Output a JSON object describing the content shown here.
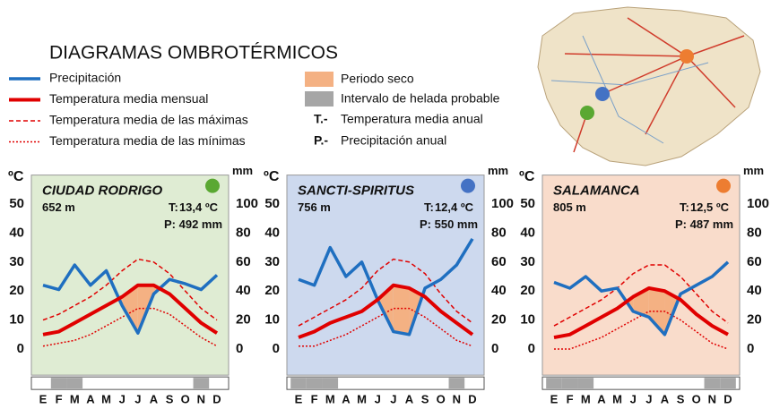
{
  "title": "DIAGRAMAS OMBROTÉRMICOS",
  "legend": {
    "dry": "Periodo seco",
    "frost": "Intervalo de helada probable",
    "annual_temp": {
      "key": "T.-",
      "text": "Temperatura media anual"
    },
    "annual_precip": {
      "key": "P.-",
      "text": "Precipitación anual"
    }
  },
  "chart_data": [
    {
      "type": "line",
      "title": "CIUDAD RODRIGO",
      "altitude": "652 m",
      "annual_temp_key": "T:",
      "annual_temp": "13,4 ºC",
      "annual_precip": "P: 492 mm",
      "background": "#dfecd3",
      "marker_color": "#5aa832",
      "dry_color": "#f4b183",
      "frost_color": "#a6a6a6",
      "ylabel": "ºC",
      "y2label": "mm",
      "ylim": [
        -9,
        60
      ],
      "yticks": [
        0,
        10,
        20,
        30,
        40,
        50
      ],
      "y2lim": [
        -18,
        120
      ],
      "y2ticks": [
        0,
        20,
        40,
        60,
        80,
        100
      ],
      "categories": [
        "E",
        "F",
        "M",
        "A",
        "M",
        "J",
        "J",
        "A",
        "S",
        "O",
        "N",
        "D"
      ],
      "frost": [
        1,
        2,
        10
      ],
      "series": [
        {
          "name": "Precipitación",
          "color": "#1f6fc0",
          "style": "solid",
          "axis": "y2",
          "values": [
            44,
            41,
            58,
            44,
            54,
            30,
            11,
            38,
            48,
            45,
            41,
            51
          ]
        },
        {
          "name": "Temperatura media mensual",
          "color": "#e00000",
          "style": "solid",
          "values": [
            5,
            6,
            9,
            12,
            15,
            18,
            22,
            22,
            19,
            14,
            9,
            5.5
          ]
        },
        {
          "name": "Temperatura media de las máximas",
          "color": "#e00000",
          "style": "dashed",
          "values": [
            10,
            12,
            15,
            18,
            22,
            27,
            31,
            30,
            26,
            20,
            14,
            10
          ]
        },
        {
          "name": "Temperatura media de las mínimas",
          "color": "#e00000",
          "style": "dotted",
          "values": [
            1,
            2,
            3,
            5,
            8,
            11,
            14,
            14,
            12,
            8,
            4,
            1
          ]
        }
      ]
    },
    {
      "type": "line",
      "title": "SANCTI-SPIRITUS",
      "altitude": "756 m",
      "annual_temp_key": "T:",
      "annual_temp": "12,4 ºC",
      "annual_precip": "P: 550 mm",
      "background": "#cdd9ee",
      "marker_color": "#4472c4",
      "dry_color": "#f4b183",
      "frost_color": "#a6a6a6",
      "ylabel": "ºC",
      "y2label": "mm",
      "ylim": [
        -9,
        60
      ],
      "yticks": [
        0,
        10,
        20,
        30,
        40,
        50
      ],
      "y2lim": [
        -18,
        120
      ],
      "y2ticks": [
        0,
        20,
        40,
        60,
        80,
        100
      ],
      "categories": [
        "E",
        "F",
        "M",
        "A",
        "M",
        "J",
        "J",
        "A",
        "S",
        "O",
        "N",
        "D"
      ],
      "frost": [
        0,
        1,
        2,
        10
      ],
      "series": [
        {
          "name": "Precipitación",
          "color": "#1f6fc0",
          "style": "solid",
          "axis": "y2",
          "values": [
            48,
            44,
            70,
            50,
            60,
            34,
            12,
            10,
            42,
            48,
            58,
            76
          ]
        },
        {
          "name": "Temperatura media mensual",
          "color": "#e00000",
          "style": "solid",
          "values": [
            4,
            6,
            9,
            11,
            13,
            17,
            22,
            21,
            18,
            13,
            9,
            5
          ]
        },
        {
          "name": "Temperatura media de las máximas",
          "color": "#e00000",
          "style": "dashed",
          "values": [
            8,
            11,
            14,
            17,
            21,
            27,
            31,
            30,
            26,
            19,
            13,
            9
          ]
        },
        {
          "name": "Temperatura media de las mínimas",
          "color": "#e00000",
          "style": "dotted",
          "values": [
            1,
            1,
            3,
            5,
            8,
            11,
            14,
            14,
            11,
            7,
            3,
            1
          ]
        }
      ]
    },
    {
      "type": "line",
      "title": "SALAMANCA",
      "altitude": "805 m",
      "annual_temp_key": "T:",
      "annual_temp": "12,5 ºC",
      "annual_precip": "P: 487 mm",
      "background": "#f9dccb",
      "marker_color": "#ed7d31",
      "dry_color": "#f4b183",
      "frost_color": "#a6a6a6",
      "ylabel": "ºC",
      "y2label": "mm",
      "ylim": [
        -9,
        60
      ],
      "yticks": [
        0,
        10,
        20,
        30,
        40,
        50
      ],
      "y2lim": [
        -18,
        120
      ],
      "y2ticks": [
        0,
        20,
        40,
        60,
        80,
        100
      ],
      "categories": [
        "E",
        "F",
        "M",
        "A",
        "M",
        "J",
        "J",
        "A",
        "S",
        "O",
        "N",
        "D"
      ],
      "frost": [
        0,
        1,
        2,
        10,
        11
      ],
      "series": [
        {
          "name": "Precipitación",
          "color": "#1f6fc0",
          "style": "solid",
          "axis": "y2",
          "values": [
            46,
            42,
            50,
            40,
            42,
            26,
            22,
            10,
            38,
            44,
            50,
            60
          ]
        },
        {
          "name": "Temperatura media mensual",
          "color": "#e00000",
          "style": "solid",
          "values": [
            4,
            5,
            8,
            11,
            14,
            18,
            21,
            20,
            17,
            12,
            8,
            5
          ]
        },
        {
          "name": "Temperatura media de las máximas",
          "color": "#e00000",
          "style": "dashed",
          "values": [
            8,
            11,
            14,
            17,
            21,
            26,
            29,
            29,
            25,
            19,
            13,
            9
          ]
        },
        {
          "name": "Temperatura media de las mínimas",
          "color": "#e00000",
          "style": "dotted",
          "values": [
            0,
            0,
            2,
            4,
            7,
            10,
            13,
            13,
            10,
            6,
            2,
            0
          ]
        }
      ]
    }
  ]
}
